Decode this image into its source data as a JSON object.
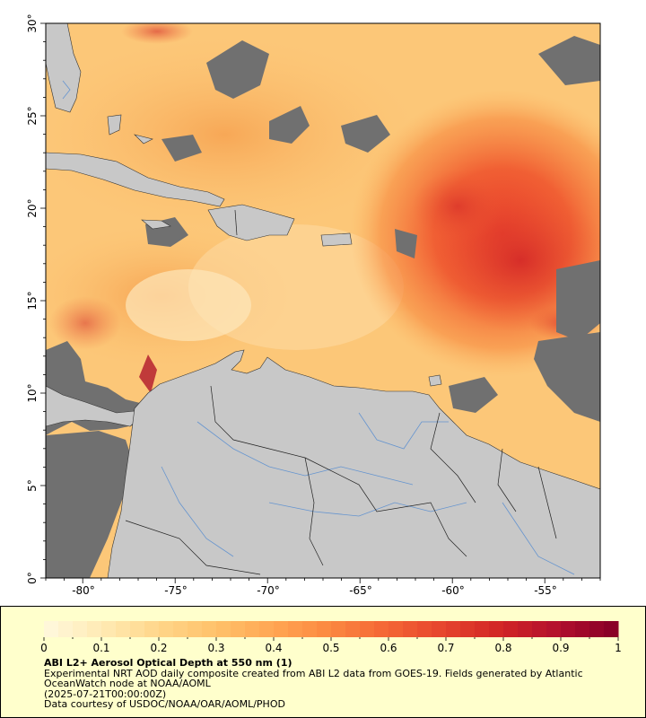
{
  "map": {
    "x_ticks": [
      "-80°",
      "-75°",
      "-70°",
      "-65°",
      "-60°",
      "-55°"
    ],
    "y_ticks": [
      "0°",
      "5°",
      "10°",
      "15°",
      "20°",
      "25°",
      "30°"
    ],
    "lon_range": [
      -82,
      -52
    ],
    "lat_range": [
      0,
      30
    ]
  },
  "legend": {
    "ticks": [
      "0",
      "0.1",
      "0.2",
      "0.3",
      "0.4",
      "0.5",
      "0.6",
      "0.7",
      "0.8",
      "0.9",
      "1"
    ],
    "range": [
      0,
      1
    ],
    "colors": [
      "#fff7d9",
      "#ffe9b0",
      "#ffd487",
      "#ffc069",
      "#ffa552",
      "#fb8740",
      "#f46635",
      "#e6442d",
      "#d22626",
      "#b4102d",
      "#8a0027"
    ]
  },
  "caption": {
    "title": "ABI L2+ Aerosol Optical Depth at 550 nm (1)",
    "line1": "Experimental NRT AOD daily composite created from ABI L2 data from GOES-19. Fields generated by Atlantic",
    "line2": "OceanWatch node at NOAA/AOML",
    "line3": "(2025-07-21T00:00:00Z)",
    "line4": "Data courtesy of USDOC/NOAA/OAR/AOML/PHOD"
  },
  "colors": {
    "land": "#c8c8c8",
    "no_data": "#707070",
    "legend_bg": "#ffffcc"
  }
}
